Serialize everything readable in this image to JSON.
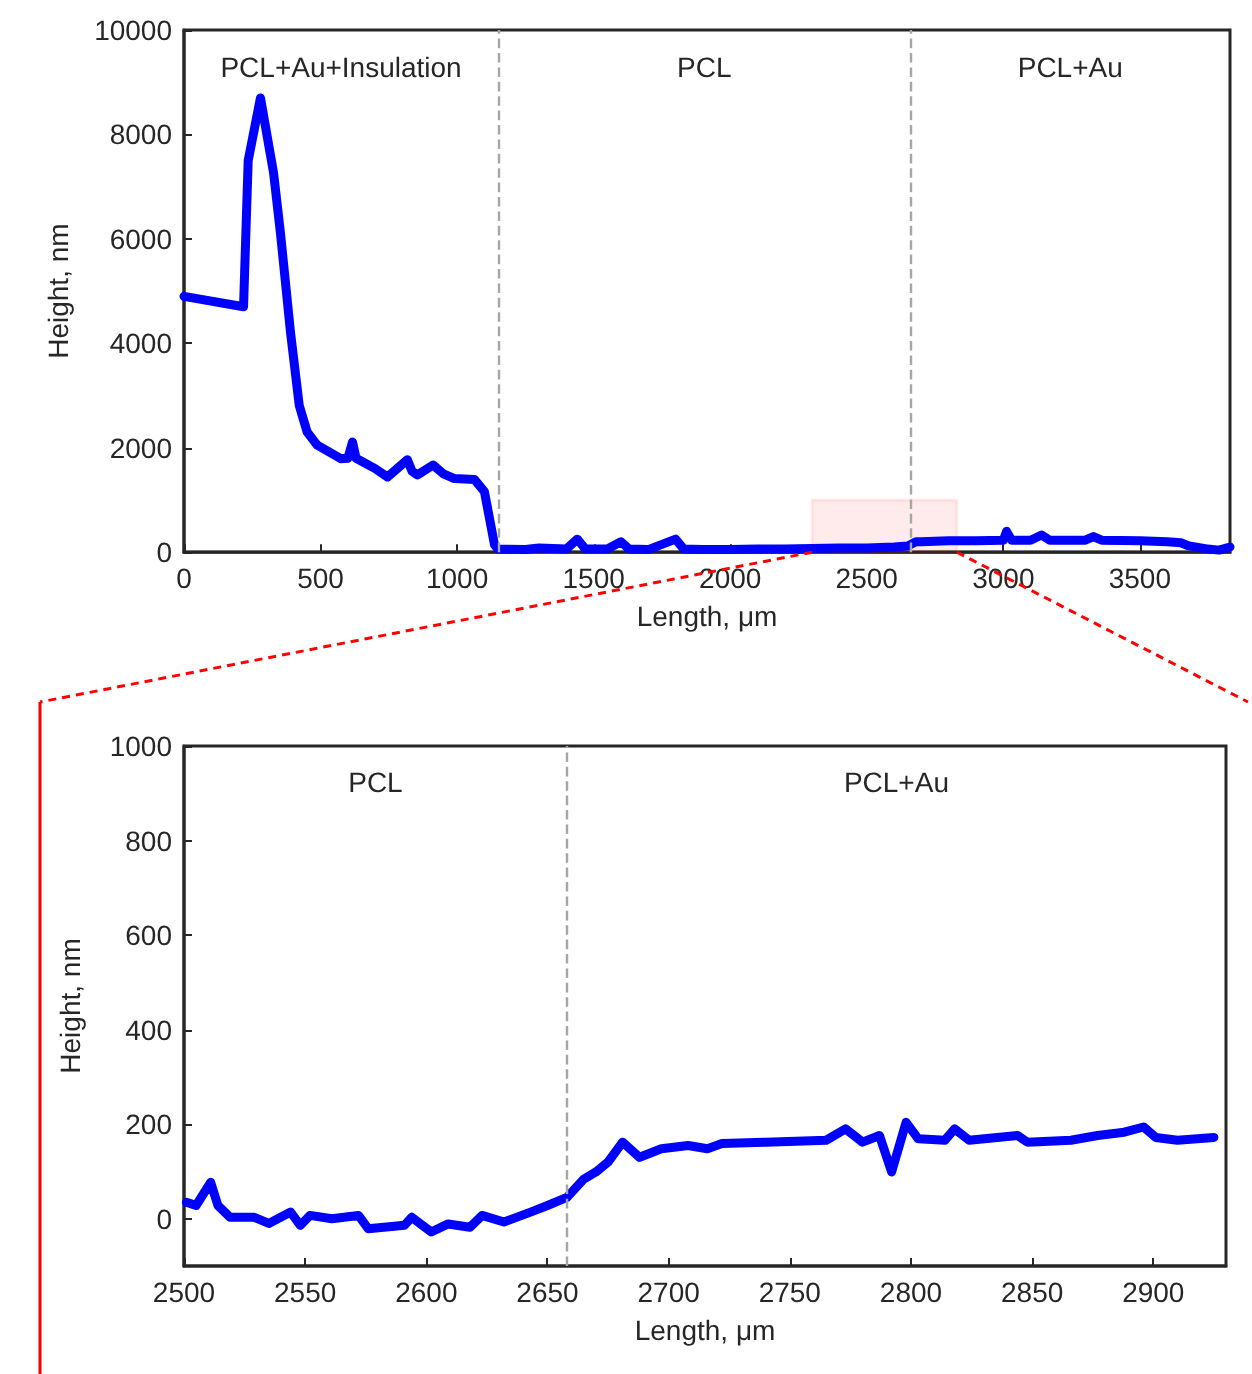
{
  "chart_data": [
    {
      "type": "line",
      "xlabel": "Length, μm",
      "ylabel": "Height, nm",
      "xlim": [
        0,
        3830
      ],
      "xticks": [
        0,
        500,
        1000,
        1500,
        2000,
        2500,
        3000,
        3500
      ],
      "ylim": [
        0,
        10000
      ],
      "yticks": [
        0,
        2000,
        4000,
        6000,
        8000,
        10000
      ],
      "x": [
        0,
        218,
        235,
        280,
        328,
        353,
        390,
        422,
        451,
        488,
        574,
        600,
        617,
        630,
        700,
        745,
        818,
        835,
        855,
        912,
        950,
        990,
        1064,
        1100,
        1137,
        1150,
        1250,
        1300,
        1400,
        1440,
        1470,
        1550,
        1600,
        1630,
        1700,
        1800,
        1830,
        1900,
        2000,
        2100,
        2200,
        2300,
        2400,
        2500,
        2600,
        2650,
        2680,
        2700,
        2800,
        2900,
        3000,
        3012,
        3030,
        3100,
        3140,
        3170,
        3300,
        3330,
        3360,
        3500,
        3600,
        3650,
        3680,
        3750,
        3790,
        3830
      ],
      "series": [
        {
          "color": "#0000ff",
          "values": [
            4900,
            4700,
            7500,
            8700,
            7260,
            6120,
            4210,
            2810,
            2300,
            2050,
            1790,
            1800,
            2110,
            1800,
            1600,
            1440,
            1770,
            1550,
            1480,
            1670,
            1500,
            1410,
            1390,
            1160,
            140,
            60,
            50,
            80,
            60,
            250,
            60,
            60,
            200,
            60,
            50,
            250,
            60,
            50,
            50,
            60,
            60,
            70,
            80,
            80,
            100,
            120,
            200,
            200,
            220,
            220,
            230,
            400,
            230,
            230,
            330,
            230,
            230,
            300,
            230,
            220,
            200,
            180,
            120,
            60,
            40,
            100
          ]
        }
      ],
      "ref_lines": [
        {
          "axis": "x",
          "value": 1150,
          "color": "#a6a6a6",
          "line_style": "dashed"
        },
        {
          "axis": "x",
          "value": 2660,
          "color": "#a6a6a6",
          "line_style": "dashed"
        }
      ],
      "bands": [
        {
          "axis": "x",
          "from": 2300,
          "to": 2830,
          "color": "#ff0000"
        }
      ],
      "annotations": [
        "PCL+Au+Insulation",
        "PCL",
        "PCL+Au"
      ]
    },
    {
      "type": "line",
      "xlabel": "Length, μm",
      "ylabel": "Height, nm",
      "xlim": [
        2500,
        2930
      ],
      "xticks": [
        2500,
        2550,
        2600,
        2650,
        2700,
        2750,
        2800,
        2850,
        2900
      ],
      "ylim": [
        -100,
        1000
      ],
      "yticks": [
        0,
        200,
        400,
        600,
        800,
        1000
      ],
      "x": [
        2501,
        2505,
        2511,
        2514,
        2519,
        2529,
        2535,
        2544,
        2548,
        2552,
        2561,
        2572,
        2576,
        2591,
        2594,
        2602,
        2609,
        2618,
        2623,
        2632,
        2643,
        2650,
        2658,
        2665,
        2670,
        2675,
        2681,
        2688,
        2697,
        2708,
        2716,
        2722,
        2740,
        2765,
        2773,
        2780,
        2787,
        2792,
        2798,
        2803,
        2814,
        2818,
        2824,
        2844,
        2848,
        2866,
        2877,
        2888,
        2896,
        2901,
        2910,
        2925
      ],
      "series": [
        {
          "color": "#0000ff",
          "values": [
            35,
            28,
            77,
            28,
            3,
            3,
            -10,
            14,
            -14,
            7,
            0,
            7,
            -21,
            -14,
            3,
            -28,
            -11,
            -18,
            7,
            -7,
            14,
            28,
            45,
            84,
            99,
            120,
            162,
            130,
            148,
            155,
            148,
            159,
            162,
            166,
            190,
            162,
            176,
            99,
            204,
            169,
            166,
            190,
            166,
            176,
            162,
            166,
            176,
            183,
            194,
            172,
            166,
            172
          ]
        }
      ],
      "ref_lines": [
        {
          "axis": "x",
          "value": 2658,
          "color": "#a6a6a6",
          "line_style": "dashed"
        }
      ],
      "annotations": [
        "PCL",
        "PCL+Au"
      ]
    }
  ]
}
